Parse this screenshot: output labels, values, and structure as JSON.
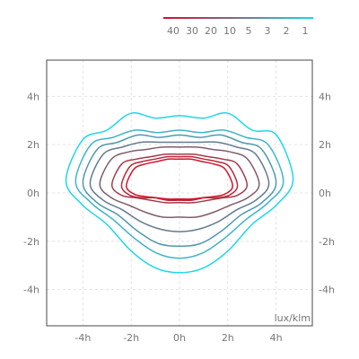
{
  "chart_data": {
    "type": "contour",
    "title": "",
    "unit_label": "lux/klm",
    "x_axis": {
      "min": -5.5,
      "max": 5.5,
      "ticks": [
        -4,
        -2,
        0,
        2,
        4
      ],
      "tick_labels": [
        "-4h",
        "-2h",
        "0h",
        "2h",
        "4h"
      ]
    },
    "y_axis": {
      "min": -5.5,
      "max": 5.5,
      "ticks": [
        -4,
        -2,
        0,
        2,
        4
      ],
      "tick_labels": [
        "-4h",
        "-2h",
        "0h",
        "2h",
        "4h"
      ],
      "mirrored_right": true
    },
    "grid": true,
    "legend": {
      "position": "top",
      "labels": [
        "40",
        "30",
        "20",
        "10",
        "5",
        "3",
        "2",
        "1"
      ],
      "gradient": [
        "#d0112b",
        "#1fd4ec"
      ]
    },
    "contours": [
      {
        "level": 1,
        "color": "#1ed6ee",
        "x_left": -4.7,
        "x_right": 4.7,
        "y_top": 3.3,
        "y_bottom": -3.3,
        "top_shape": [
          2.2,
          2.6,
          3.3,
          3.1,
          3.2,
          3.1,
          3.3,
          2.6,
          2.4
        ],
        "bottom_shape": [
          -0.5,
          -1.3,
          -2.4,
          -3.1,
          -3.3,
          -3.1,
          -2.4,
          -1.3,
          -0.5
        ]
      },
      {
        "level": 2,
        "color": "#3fb3c8",
        "x_left": -4.3,
        "x_right": 4.3,
        "y_top": 2.7,
        "y_bottom": -2.7,
        "top_shape": [
          2.0,
          2.3,
          2.6,
          2.5,
          2.6,
          2.5,
          2.6,
          2.3,
          2.0
        ],
        "bottom_shape": [
          -0.4,
          -1.1,
          -1.9,
          -2.5,
          -2.7,
          -2.5,
          -1.9,
          -1.1,
          -0.4
        ]
      },
      {
        "level": 3,
        "color": "#4f98ad",
        "x_left": -4.0,
        "x_right": 4.0,
        "y_top": 2.5,
        "y_bottom": -2.2,
        "top_shape": [
          1.8,
          2.1,
          2.4,
          2.3,
          2.4,
          2.3,
          2.4,
          2.1,
          1.8
        ],
        "bottom_shape": [
          -0.4,
          -0.9,
          -1.6,
          -2.1,
          -2.2,
          -2.1,
          -1.6,
          -0.9,
          -0.4
        ]
      },
      {
        "level": 5,
        "color": "#627a8e",
        "x_left": -3.7,
        "x_right": 3.7,
        "y_top": 2.2,
        "y_bottom": -1.6,
        "top_shape": [
          1.6,
          1.9,
          2.1,
          2.1,
          2.1,
          2.1,
          2.1,
          1.9,
          1.6
        ],
        "bottom_shape": [
          -0.3,
          -0.7,
          -1.2,
          -1.5,
          -1.6,
          -1.5,
          -1.2,
          -0.7,
          -0.3
        ]
      },
      {
        "level": 10,
        "color": "#805c6c",
        "x_left": -3.3,
        "x_right": 3.3,
        "y_top": 1.9,
        "y_bottom": -1.0,
        "top_shape": [
          1.4,
          1.7,
          1.8,
          1.9,
          1.9,
          1.9,
          1.8,
          1.7,
          1.4
        ],
        "bottom_shape": [
          -0.2,
          -0.5,
          -0.8,
          -1.0,
          -1.0,
          -1.0,
          -0.8,
          -0.5,
          -0.2
        ]
      },
      {
        "level": 20,
        "color": "#a43a4d",
        "x_left": -2.8,
        "x_right": 2.8,
        "y_top": 1.6,
        "y_bottom": -0.4,
        "top_shape": [
          1.2,
          1.4,
          1.5,
          1.6,
          1.6,
          1.6,
          1.5,
          1.4,
          1.2
        ],
        "bottom_shape": [
          -0.1,
          -0.2,
          -0.3,
          -0.4,
          -0.4,
          -0.4,
          -0.3,
          -0.2,
          -0.1
        ]
      },
      {
        "level": 30,
        "color": "#bd2636",
        "x_left": -2.4,
        "x_right": 2.4,
        "y_top": 1.5,
        "y_bottom": -0.3,
        "top_shape": [
          1.1,
          1.3,
          1.4,
          1.5,
          1.5,
          1.5,
          1.4,
          1.3,
          1.1
        ],
        "bottom_shape": [
          -0.1,
          -0.2,
          -0.2,
          -0.3,
          -0.3,
          -0.3,
          -0.2,
          -0.2,
          -0.1
        ]
      },
      {
        "level": 40,
        "color": "#d0142c",
        "x_left": -2.2,
        "x_right": 2.2,
        "y_top": 1.4,
        "y_bottom": -0.25,
        "top_shape": [
          1.0,
          1.2,
          1.3,
          1.4,
          1.4,
          1.4,
          1.3,
          1.2,
          1.0
        ],
        "bottom_shape": [
          -0.05,
          -0.15,
          -0.2,
          -0.25,
          -0.25,
          -0.25,
          -0.2,
          -0.15,
          -0.05
        ]
      }
    ]
  }
}
